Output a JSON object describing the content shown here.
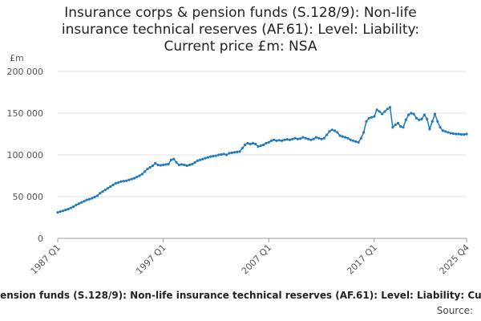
{
  "chart_data": {
    "type": "line",
    "title": "Insurance corps & pension funds (S.128/9): Non-life insurance technical reserves (AF.61): Level: Liability: Current price £m: NSA",
    "y_unit": "£m",
    "source": "Source:",
    "color": "#1f7abd",
    "grid": true,
    "ylim": [
      0,
      200000
    ],
    "yticks": [
      0,
      {
        "value": 50000,
        "label": "50 000"
      },
      {
        "value": 100000,
        "label": "100 000"
      },
      {
        "value": 150000,
        "label": "150 000"
      },
      {
        "value": 200000,
        "label": "200 000"
      }
    ],
    "categories": [
      "1987 Q1",
      null,
      null,
      null,
      null,
      null,
      null,
      null,
      null,
      null,
      null,
      null,
      null,
      null,
      null,
      null,
      null,
      null,
      null,
      null,
      null,
      null,
      null,
      null,
      null,
      null,
      null,
      null,
      null,
      null,
      null,
      null,
      null,
      null,
      null,
      null,
      null,
      null,
      null,
      null,
      "1997 Q1",
      null,
      null,
      null,
      null,
      null,
      null,
      null,
      null,
      null,
      null,
      null,
      null,
      null,
      null,
      null,
      null,
      null,
      null,
      null,
      null,
      null,
      null,
      null,
      null,
      null,
      null,
      null,
      null,
      null,
      null,
      null,
      null,
      null,
      null,
      null,
      null,
      null,
      null,
      null,
      "2007 Q1",
      null,
      null,
      null,
      null,
      null,
      null,
      null,
      null,
      null,
      null,
      null,
      null,
      null,
      null,
      null,
      null,
      null,
      null,
      null,
      null,
      null,
      null,
      null,
      null,
      null,
      null,
      null,
      null,
      null,
      null,
      null,
      null,
      null,
      null,
      null,
      null,
      null,
      null,
      null,
      "2017 Q1",
      null,
      null,
      null,
      null,
      null,
      null,
      null,
      null,
      null,
      null,
      null,
      null,
      null,
      null,
      null,
      null,
      null,
      null,
      null,
      null,
      null,
      null,
      null,
      null,
      null,
      null,
      null,
      null,
      null,
      null,
      null,
      null,
      null,
      null,
      "2025 Q4"
    ],
    "values": [
      31000,
      32000,
      33000,
      34000,
      35000,
      36500,
      38000,
      40000,
      41500,
      43000,
      44500,
      46000,
      47000,
      48000,
      49500,
      51000,
      54000,
      56000,
      58000,
      60000,
      62000,
      64000,
      66000,
      67000,
      68000,
      68500,
      69000,
      70000,
      71000,
      72000,
      73500,
      75000,
      77000,
      80000,
      83000,
      85000,
      87000,
      90000,
      88000,
      87500,
      88000,
      88500,
      89000,
      94000,
      95000,
      91000,
      88000,
      88500,
      88000,
      87000,
      88000,
      89000,
      91000,
      93000,
      94000,
      95000,
      96000,
      97000,
      98000,
      98500,
      99000,
      100000,
      100500,
      101000,
      100000,
      102000,
      102500,
      103000,
      103500,
      104000,
      108000,
      112000,
      114000,
      113000,
      114000,
      113000,
      110000,
      111000,
      112000,
      114000,
      115000,
      117000,
      118000,
      117000,
      117500,
      117000,
      118000,
      118500,
      118000,
      119000,
      120000,
      119000,
      119500,
      121000,
      120000,
      119000,
      118000,
      119000,
      121000,
      120000,
      119000,
      120000,
      124000,
      128000,
      130000,
      129000,
      127000,
      123000,
      122000,
      121000,
      120000,
      118000,
      117000,
      116000,
      115000,
      120000,
      127000,
      140000,
      144000,
      145000,
      146000,
      154000,
      152000,
      149000,
      152000,
      155000,
      157000,
      133000,
      136000,
      138000,
      134000,
      133000,
      142000,
      148000,
      150000,
      149000,
      144000,
      142000,
      143000,
      148000,
      143000,
      131000,
      140000,
      149000,
      140000,
      133000,
      129000,
      128000,
      127000,
      126000,
      125500,
      125000,
      125000,
      124500,
      124500,
      125000
    ]
  }
}
